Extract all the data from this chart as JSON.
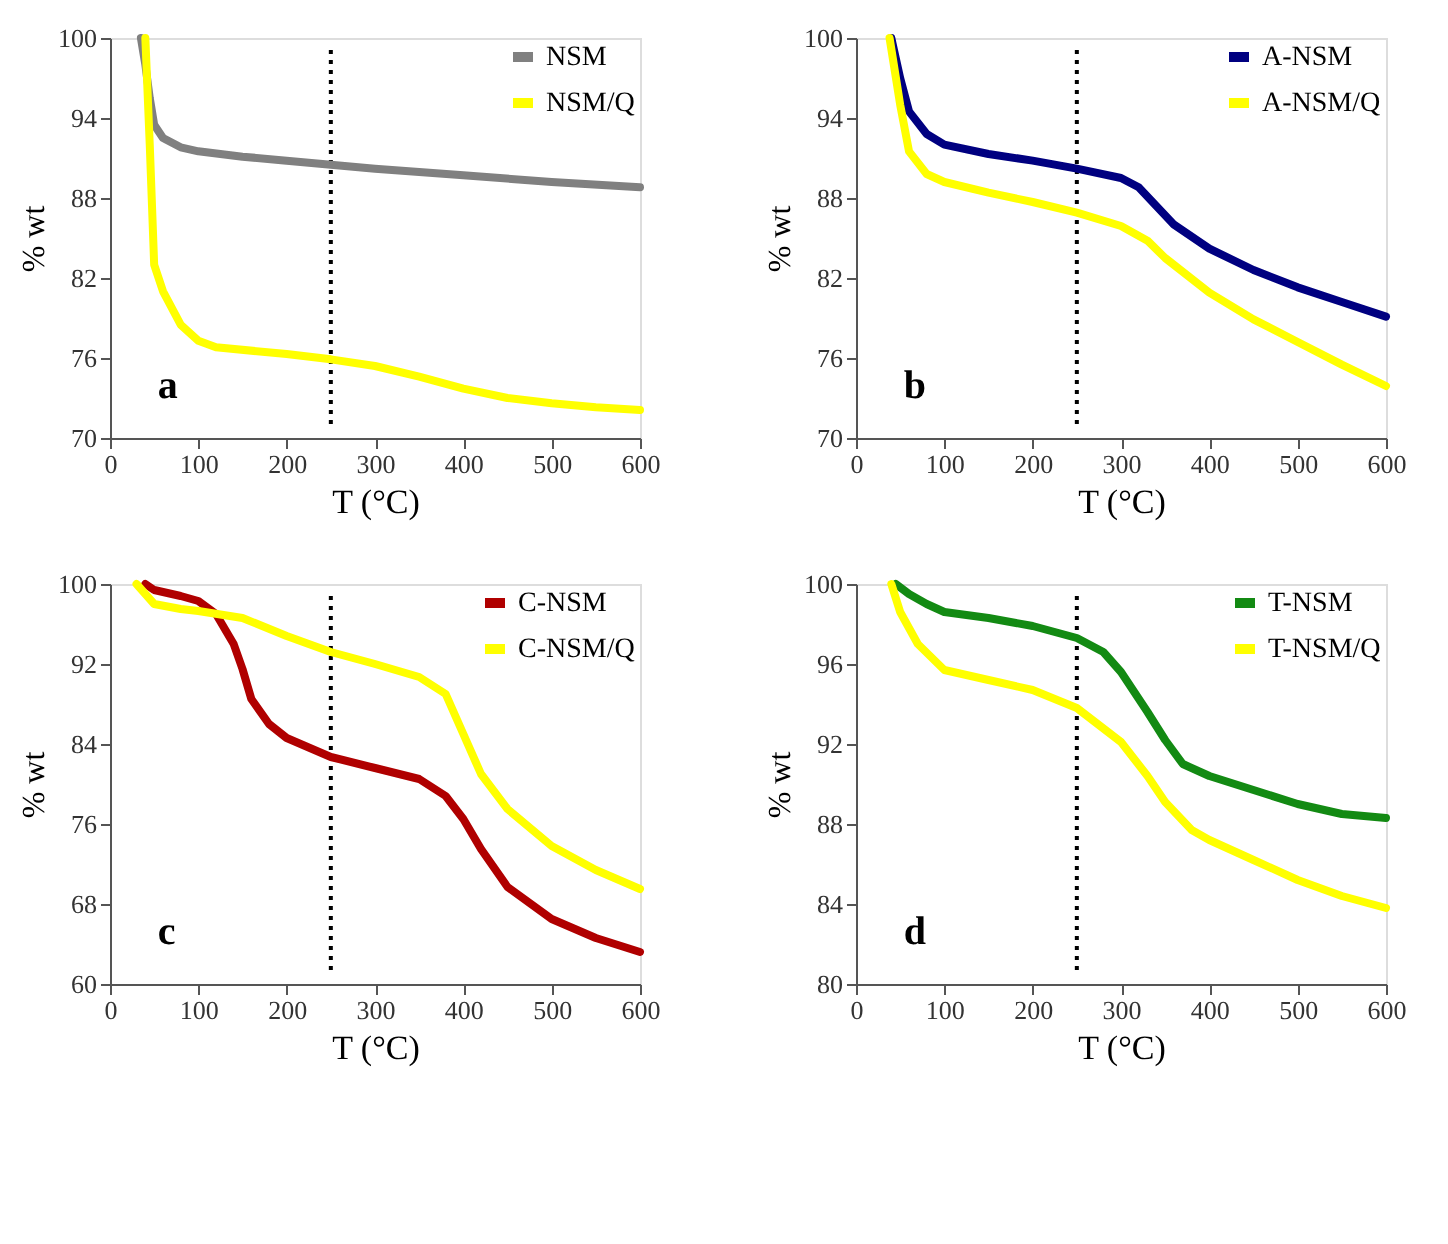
{
  "chart_data": [
    {
      "type": "line",
      "xlabel": "T (°C)",
      "ylabel": "% wt",
      "annotations": [
        "a"
      ],
      "legend": "top right",
      "line_style": "solid",
      "xlim": [
        0,
        600
      ],
      "xticks": [
        0,
        100,
        200,
        300,
        400,
        500,
        600
      ],
      "ylim": [
        70,
        100
      ],
      "yticks": [
        70,
        76,
        82,
        88,
        94,
        100
      ],
      "ref_lines": [
        {
          "axis": "x",
          "value": 250,
          "line_style": "dotted",
          "color": "#000000"
        }
      ],
      "series": [
        {
          "name": "NSM",
          "color": "#808080",
          "x": [
            35,
            40,
            45,
            50,
            60,
            80,
            100,
            150,
            200,
            250,
            300,
            400,
            500,
            600
          ],
          "values": [
            100,
            98,
            95.5,
            93.5,
            92.5,
            91.8,
            91.5,
            91.1,
            90.8,
            90.5,
            90.2,
            89.7,
            89.2,
            88.8
          ]
        },
        {
          "name": "NSM/Q",
          "color": "#ffff00",
          "x": [
            40,
            45,
            50,
            60,
            80,
            100,
            120,
            200,
            250,
            300,
            350,
            400,
            450,
            500,
            550,
            600
          ],
          "values": [
            100,
            92,
            83,
            81,
            78.5,
            77.3,
            76.8,
            76.3,
            75.9,
            75.4,
            74.6,
            73.7,
            73,
            72.6,
            72.3,
            72.1
          ]
        }
      ]
    },
    {
      "type": "line",
      "xlabel": "T (°C)",
      "ylabel": "% wt",
      "annotations": [
        "b"
      ],
      "legend": "top right",
      "line_style": "solid",
      "xlim": [
        0,
        600
      ],
      "xticks": [
        0,
        100,
        200,
        300,
        400,
        500,
        600
      ],
      "ylim": [
        70,
        100
      ],
      "yticks": [
        70,
        76,
        82,
        88,
        94,
        100
      ],
      "ref_lines": [
        {
          "axis": "x",
          "value": 250,
          "line_style": "dotted",
          "color": "#000000"
        }
      ],
      "series": [
        {
          "name": "A-NSM",
          "color": "#000080",
          "x": [
            40,
            50,
            60,
            80,
            100,
            150,
            200,
            250,
            300,
            320,
            340,
            360,
            400,
            450,
            500,
            550,
            600
          ],
          "values": [
            100,
            97,
            94.5,
            92.8,
            92.0,
            91.3,
            90.8,
            90.2,
            89.5,
            88.8,
            87.4,
            86,
            84.2,
            82.6,
            81.3,
            80.2,
            79.1
          ]
        },
        {
          "name": "A-NSM/Q",
          "color": "#ffff00",
          "x": [
            38,
            50,
            60,
            80,
            100,
            150,
            200,
            250,
            300,
            330,
            350,
            400,
            450,
            500,
            550,
            600
          ],
          "values": [
            100,
            95,
            91.5,
            89.8,
            89.2,
            88.4,
            87.7,
            86.9,
            85.9,
            84.8,
            83.5,
            80.9,
            78.9,
            77.2,
            75.5,
            73.9
          ]
        }
      ]
    },
    {
      "type": "line",
      "xlabel": "T (°C)",
      "ylabel": "% wt",
      "annotations": [
        "c"
      ],
      "legend": "top right",
      "line_style": "solid",
      "xlim": [
        0,
        600
      ],
      "xticks": [
        0,
        100,
        200,
        300,
        400,
        500,
        600
      ],
      "ylim": [
        60,
        100
      ],
      "yticks": [
        60,
        68,
        76,
        84,
        92,
        100
      ],
      "ref_lines": [
        {
          "axis": "x",
          "value": 250,
          "line_style": "dotted",
          "color": "#000000"
        }
      ],
      "series": [
        {
          "name": "C-NSM",
          "color": "#b00000",
          "x": [
            40,
            50,
            80,
            100,
            120,
            140,
            150,
            160,
            180,
            200,
            250,
            300,
            350,
            380,
            400,
            420,
            450,
            500,
            550,
            600
          ],
          "values": [
            100,
            99.4,
            98.8,
            98.3,
            97,
            94,
            91.5,
            88.5,
            86,
            84.6,
            82.7,
            81.6,
            80.5,
            78.8,
            76.5,
            73.5,
            69.7,
            66.5,
            64.6,
            63.2
          ]
        },
        {
          "name": "C-NSM/Q",
          "color": "#ffff00",
          "x": [
            30,
            40,
            50,
            80,
            100,
            150,
            200,
            250,
            300,
            350,
            380,
            400,
            420,
            450,
            500,
            550,
            600
          ],
          "values": [
            100,
            99,
            98,
            97.5,
            97.3,
            96.6,
            94.8,
            93.2,
            92,
            90.7,
            89,
            85,
            81,
            77.5,
            73.8,
            71.4,
            69.5
          ]
        }
      ]
    },
    {
      "type": "line",
      "xlabel": "T (°C)",
      "ylabel": "% wt",
      "annotations": [
        "d"
      ],
      "legend": "top right",
      "line_style": "solid",
      "xlim": [
        0,
        600
      ],
      "xticks": [
        0,
        100,
        200,
        300,
        400,
        500,
        600
      ],
      "ylim": [
        80,
        100
      ],
      "yticks": [
        80,
        84,
        88,
        92,
        96,
        100
      ],
      "ref_lines": [
        {
          "axis": "x",
          "value": 250,
          "line_style": "dotted",
          "color": "#000000"
        }
      ],
      "series": [
        {
          "name": "T-NSM",
          "color": "#138a13",
          "x": [
            45,
            60,
            80,
            100,
            150,
            200,
            250,
            280,
            300,
            330,
            350,
            370,
            400,
            450,
            500,
            550,
            600
          ],
          "values": [
            100,
            99.5,
            99,
            98.6,
            98.3,
            97.9,
            97.3,
            96.6,
            95.6,
            93.6,
            92.2,
            91,
            90.4,
            89.7,
            89,
            88.5,
            88.3
          ]
        },
        {
          "name": "T-NSM/Q",
          "color": "#ffff00",
          "x": [
            40,
            50,
            70,
            100,
            150,
            200,
            250,
            300,
            330,
            350,
            380,
            400,
            450,
            500,
            550,
            600
          ],
          "values": [
            100,
            98.6,
            97,
            95.7,
            95.2,
            94.7,
            93.8,
            92.1,
            90.4,
            89.1,
            87.7,
            87.2,
            86.2,
            85.2,
            84.4,
            83.8
          ]
        }
      ]
    }
  ]
}
